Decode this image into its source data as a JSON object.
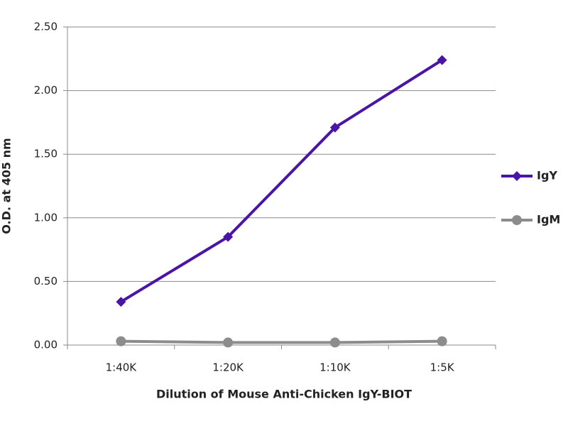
{
  "chart_data": {
    "type": "line",
    "x_label": "Dilution of Mouse Anti-Chicken IgY-BIOT",
    "y_label": "O.D. at 405 nm",
    "categories": [
      "1:40K",
      "1:20K",
      "1:10K",
      "1:5K"
    ],
    "series": [
      {
        "name": "IgY",
        "color": "#4a14a6",
        "marker": "diamond",
        "values": [
          0.34,
          0.85,
          1.71,
          2.24
        ]
      },
      {
        "name": "IgM",
        "color": "#8c8c8c",
        "marker": "circle",
        "values": [
          0.03,
          0.02,
          0.02,
          0.03
        ]
      }
    ],
    "ylim": [
      0,
      2.5
    ],
    "yticks": [
      {
        "value": 0,
        "label": "0.00"
      },
      {
        "value": 0.5,
        "label": "0.50"
      },
      {
        "value": 1,
        "label": "1.00"
      },
      {
        "value": 1.5,
        "label": "1.50"
      },
      {
        "value": 2,
        "label": "2.00"
      },
      {
        "value": 2.5,
        "label": "2.50"
      }
    ],
    "grid": true,
    "legend": "right"
  }
}
